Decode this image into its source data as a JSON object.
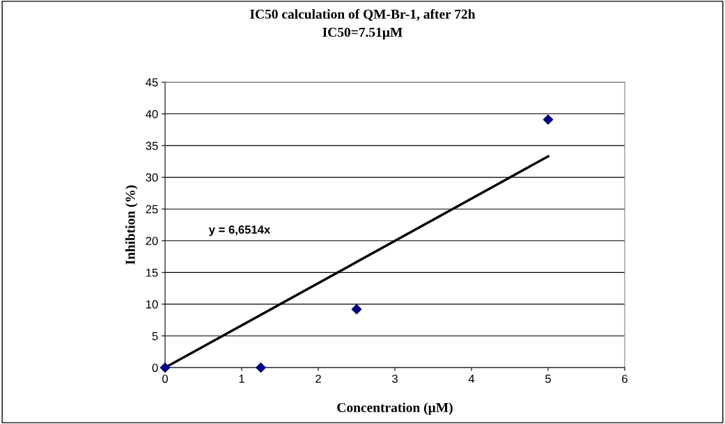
{
  "chart_data": {
    "type": "scatter",
    "title": "IC50 calculation of QM-Br-1, after 72h",
    "subtitle": "IC50=7.51µM",
    "xlabel": "Concentration (µM)",
    "ylabel": "Inhibtion (%)",
    "series": [
      {
        "color": "#000080",
        "marker": "diamond",
        "x": [
          0,
          1.25,
          2.5,
          5
        ],
        "values": [
          0,
          0,
          9.2,
          39.1
        ]
      },
      {
        "type": "line",
        "color": "#000000",
        "marker": "none",
        "x": [
          0,
          5
        ],
        "values": [
          0,
          33.3
        ]
      }
    ],
    "annotations": [
      "y = 6,6514x"
    ],
    "xlim": [
      0,
      6
    ],
    "xticks": [
      0,
      1,
      2,
      3,
      4,
      5,
      6
    ],
    "ylim": [
      0,
      45
    ],
    "yticks": [
      0,
      5,
      10,
      15,
      20,
      25,
      30,
      35,
      40,
      45
    ],
    "grid": "y",
    "legend": false
  }
}
